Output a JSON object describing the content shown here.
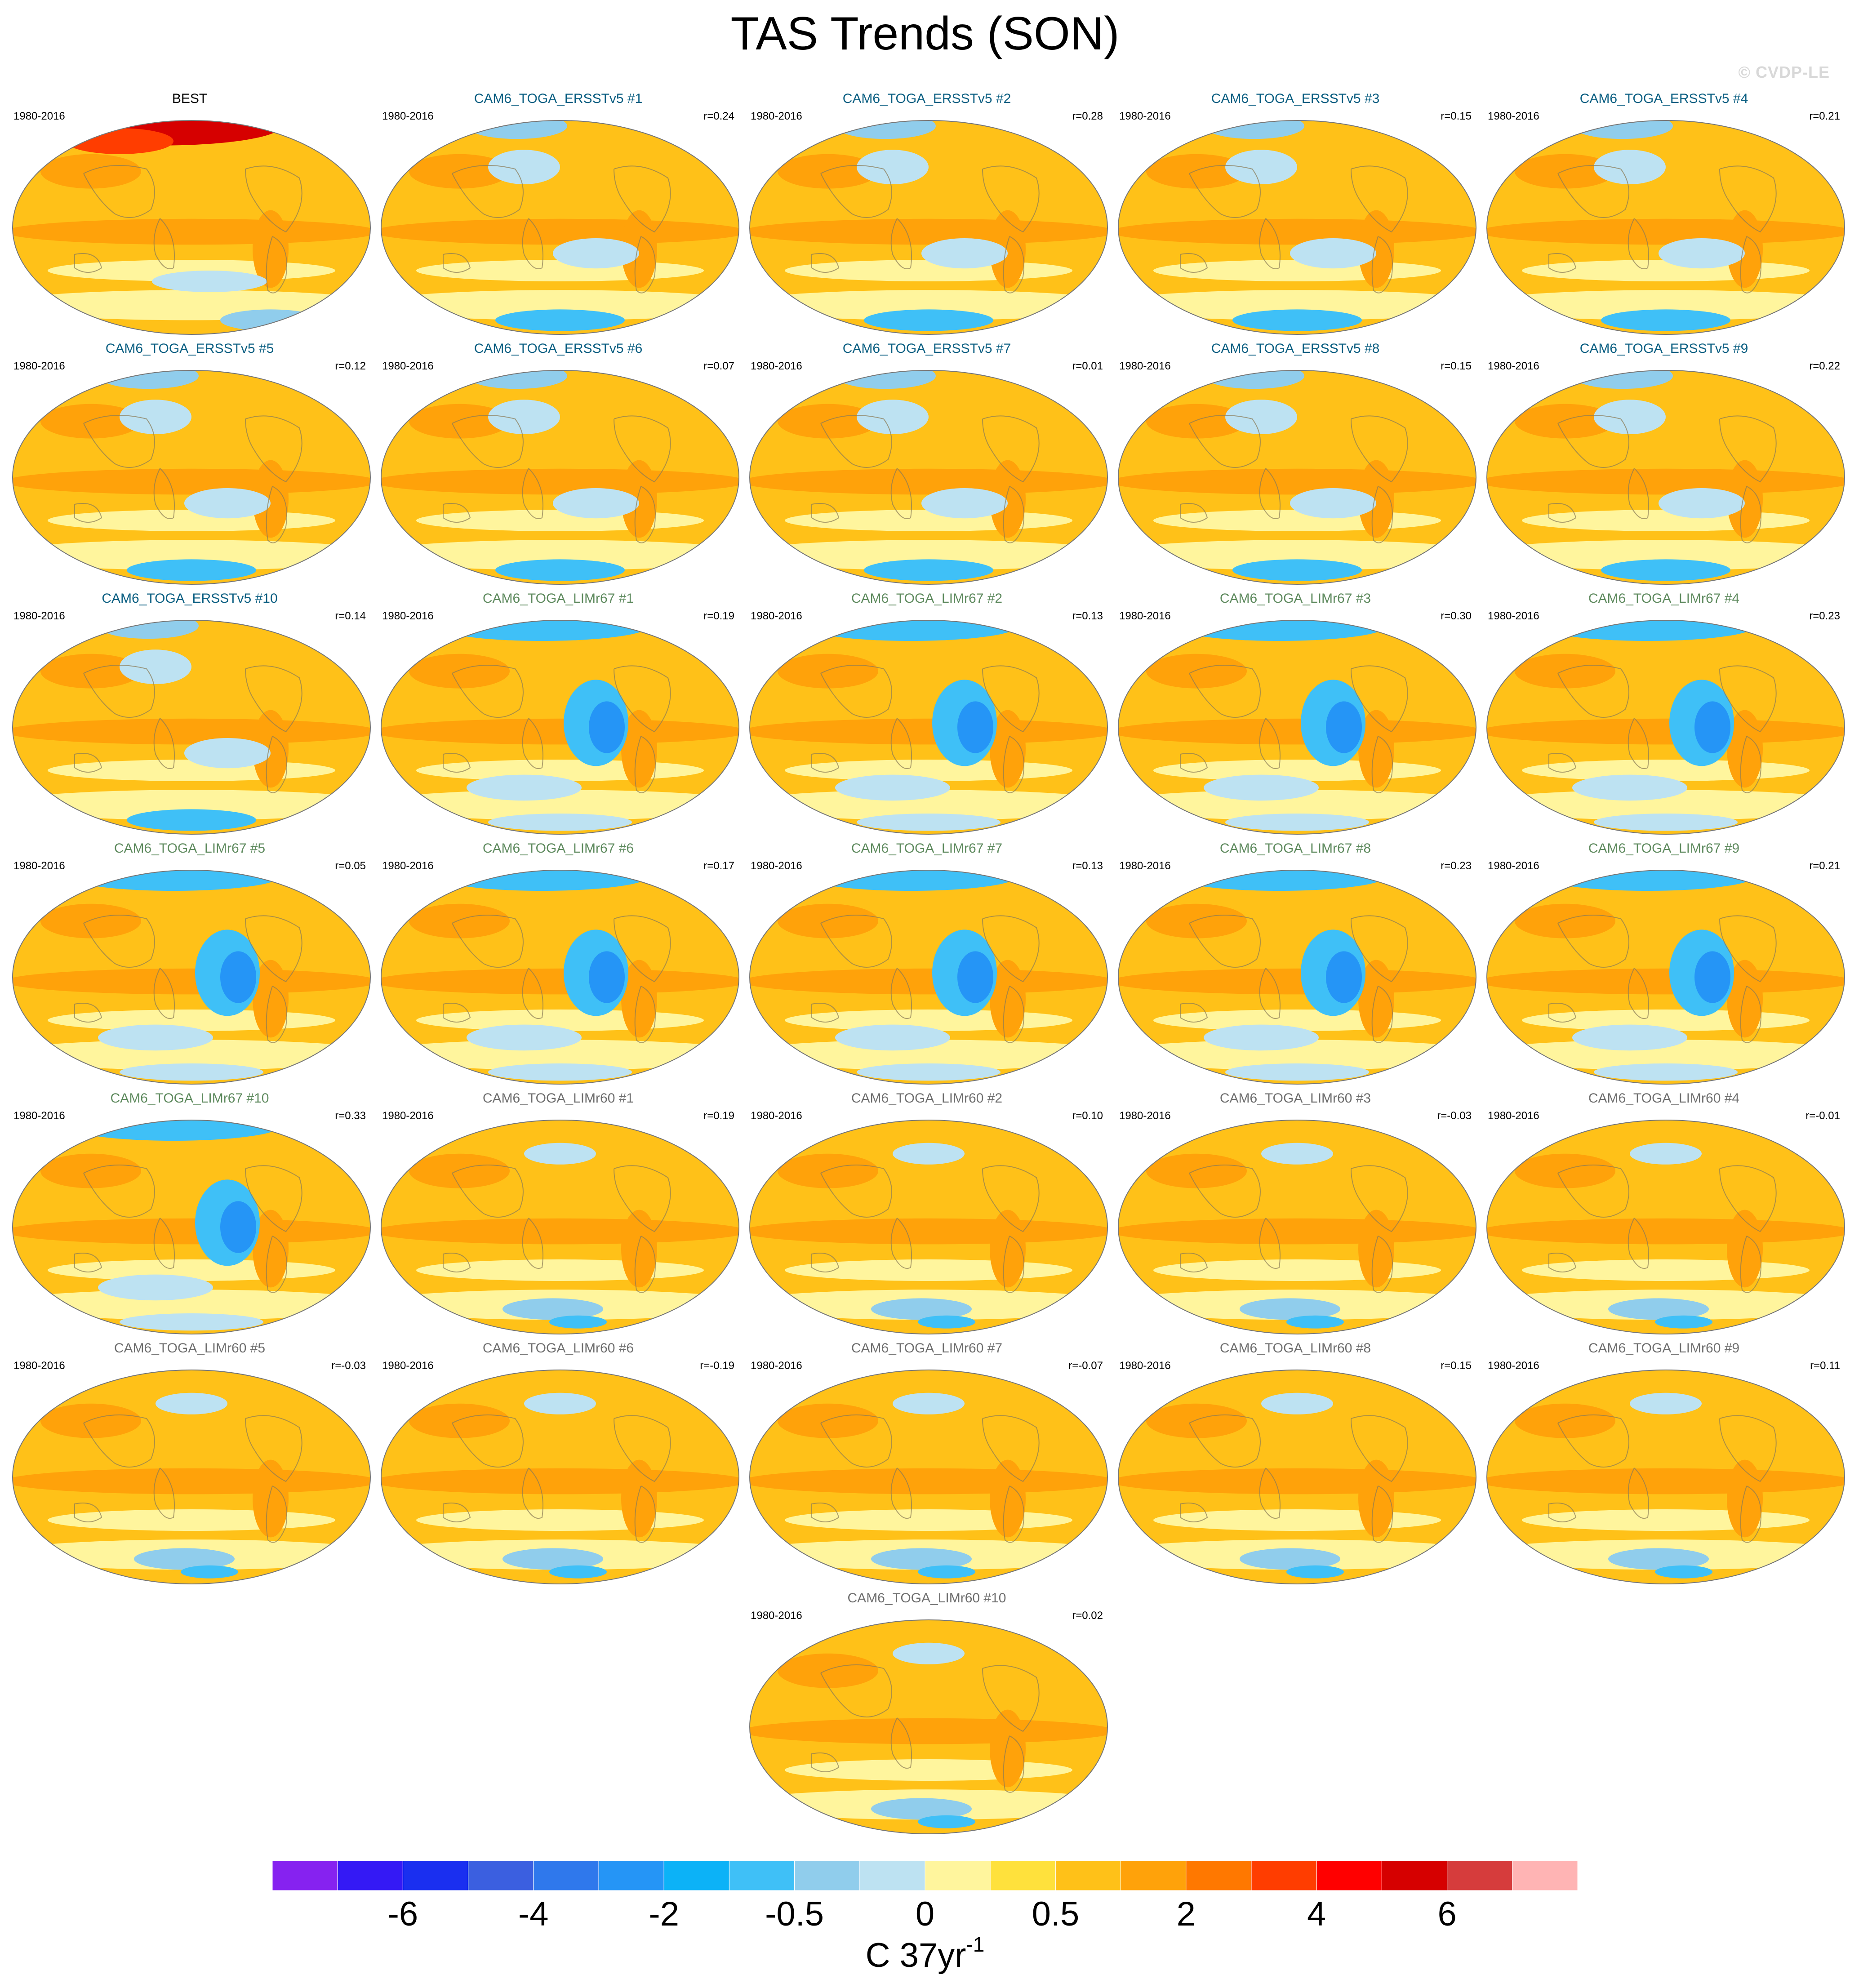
{
  "title": "TAS Trends (SON)",
  "watermark": "© CVDP-LE",
  "chart_data": {
    "type": "heatmap",
    "title": "TAS Trends (SON)",
    "projection": "global maps",
    "period": "1980-2016",
    "panels": [
      {
        "name": "BEST",
        "color": "#000000",
        "period": "1980-2016",
        "r": "",
        "style": "obs"
      },
      {
        "name": "CAM6_TOGA_ERSSTv5 #1",
        "color": "#0b5f82",
        "period": "1980-2016",
        "r": "r=0.24",
        "style": "warm"
      },
      {
        "name": "CAM6_TOGA_ERSSTv5 #2",
        "color": "#0b5f82",
        "period": "1980-2016",
        "r": "r=0.28",
        "style": "warm"
      },
      {
        "name": "CAM6_TOGA_ERSSTv5 #3",
        "color": "#0b5f82",
        "period": "1980-2016",
        "r": "r=0.15",
        "style": "warm"
      },
      {
        "name": "CAM6_TOGA_ERSSTv5 #4",
        "color": "#0b5f82",
        "period": "1980-2016",
        "r": "r=0.21",
        "style": "warm"
      },
      {
        "name": "CAM6_TOGA_ERSSTv5 #5",
        "color": "#0b5f82",
        "period": "1980-2016",
        "r": "r=0.12",
        "style": "warm"
      },
      {
        "name": "CAM6_TOGA_ERSSTv5 #6",
        "color": "#0b5f82",
        "period": "1980-2016",
        "r": "r=0.07",
        "style": "warm"
      },
      {
        "name": "CAM6_TOGA_ERSSTv5 #7",
        "color": "#0b5f82",
        "period": "1980-2016",
        "r": "r=0.01",
        "style": "warm"
      },
      {
        "name": "CAM6_TOGA_ERSSTv5 #8",
        "color": "#0b5f82",
        "period": "1980-2016",
        "r": "r=0.15",
        "style": "warm"
      },
      {
        "name": "CAM6_TOGA_ERSSTv5 #9",
        "color": "#0b5f82",
        "period": "1980-2016",
        "r": "r=0.22",
        "style": "warm"
      },
      {
        "name": "CAM6_TOGA_ERSSTv5 #10",
        "color": "#0b5f82",
        "period": "1980-2016",
        "r": "r=0.14",
        "style": "warm"
      },
      {
        "name": "CAM6_TOGA_LIMr67 #1",
        "color": "#5e8a5e",
        "period": "1980-2016",
        "r": "r=0.19",
        "style": "pacific"
      },
      {
        "name": "CAM6_TOGA_LIMr67 #2",
        "color": "#5e8a5e",
        "period": "1980-2016",
        "r": "r=0.13",
        "style": "pacific"
      },
      {
        "name": "CAM6_TOGA_LIMr67 #3",
        "color": "#5e8a5e",
        "period": "1980-2016",
        "r": "r=0.30",
        "style": "pacific"
      },
      {
        "name": "CAM6_TOGA_LIMr67 #4",
        "color": "#5e8a5e",
        "period": "1980-2016",
        "r": "r=0.23",
        "style": "pacific"
      },
      {
        "name": "CAM6_TOGA_LIMr67 #5",
        "color": "#5e8a5e",
        "period": "1980-2016",
        "r": "r=0.05",
        "style": "pacific"
      },
      {
        "name": "CAM6_TOGA_LIMr67 #6",
        "color": "#5e8a5e",
        "period": "1980-2016",
        "r": "r=0.17",
        "style": "pacific"
      },
      {
        "name": "CAM6_TOGA_LIMr67 #7",
        "color": "#5e8a5e",
        "period": "1980-2016",
        "r": "r=0.13",
        "style": "pacific"
      },
      {
        "name": "CAM6_TOGA_LIMr67 #8",
        "color": "#5e8a5e",
        "period": "1980-2016",
        "r": "r=0.23",
        "style": "pacific"
      },
      {
        "name": "CAM6_TOGA_LIMr67 #9",
        "color": "#5e8a5e",
        "period": "1980-2016",
        "r": "r=0.21",
        "style": "pacific"
      },
      {
        "name": "CAM6_TOGA_LIMr67 #10",
        "color": "#5e8a5e",
        "period": "1980-2016",
        "r": "r=0.33",
        "style": "pacific"
      },
      {
        "name": "CAM6_TOGA_LIMr60 #1",
        "color": "#6e6e6e",
        "period": "1980-2016",
        "r": "r=0.19",
        "style": "uniform"
      },
      {
        "name": "CAM6_TOGA_LIMr60 #2",
        "color": "#6e6e6e",
        "period": "1980-2016",
        "r": "r=0.10",
        "style": "uniform"
      },
      {
        "name": "CAM6_TOGA_LIMr60 #3",
        "color": "#6e6e6e",
        "period": "1980-2016",
        "r": "r=-0.03",
        "style": "uniform"
      },
      {
        "name": "CAM6_TOGA_LIMr60 #4",
        "color": "#6e6e6e",
        "period": "1980-2016",
        "r": "r=-0.01",
        "style": "uniform"
      },
      {
        "name": "CAM6_TOGA_LIMr60 #5",
        "color": "#6e6e6e",
        "period": "1980-2016",
        "r": "r=-0.03",
        "style": "uniform"
      },
      {
        "name": "CAM6_TOGA_LIMr60 #6",
        "color": "#6e6e6e",
        "period": "1980-2016",
        "r": "r=-0.19",
        "style": "uniform"
      },
      {
        "name": "CAM6_TOGA_LIMr60 #7",
        "color": "#6e6e6e",
        "period": "1980-2016",
        "r": "r=-0.07",
        "style": "uniform"
      },
      {
        "name": "CAM6_TOGA_LIMr60 #8",
        "color": "#6e6e6e",
        "period": "1980-2016",
        "r": "r=0.15",
        "style": "uniform"
      },
      {
        "name": "CAM6_TOGA_LIMr60 #9",
        "color": "#6e6e6e",
        "period": "1980-2016",
        "r": "r=0.11",
        "style": "uniform"
      },
      {
        "name": "CAM6_TOGA_LIMr60 #10",
        "color": "#6e6e6e",
        "period": "1980-2016",
        "r": "r=0.02",
        "style": "uniform"
      }
    ],
    "colorbar": {
      "colors": [
        "#8622f0",
        "#3419f5",
        "#1a2ff0",
        "#3b5fe0",
        "#2f78ec",
        "#2595f6",
        "#0cb2f7",
        "#3fc0f7",
        "#90cdec",
        "#bde2f2",
        "#fff59d",
        "#ffe13c",
        "#ffc118",
        "#ffa20a",
        "#ff7800",
        "#ff3d00",
        "#ff0000",
        "#d60000",
        "#d63c3c",
        "#ffb4b4"
      ],
      "tick_labels": [
        "-6",
        "-4",
        "-2",
        "-0.5",
        "0",
        "0.5",
        "2",
        "4",
        "6"
      ],
      "tick_boundaries": [
        2,
        4,
        6,
        8,
        10,
        12,
        14,
        16,
        18
      ],
      "units_base": "C 37yr",
      "units_exp": "-1"
    }
  }
}
